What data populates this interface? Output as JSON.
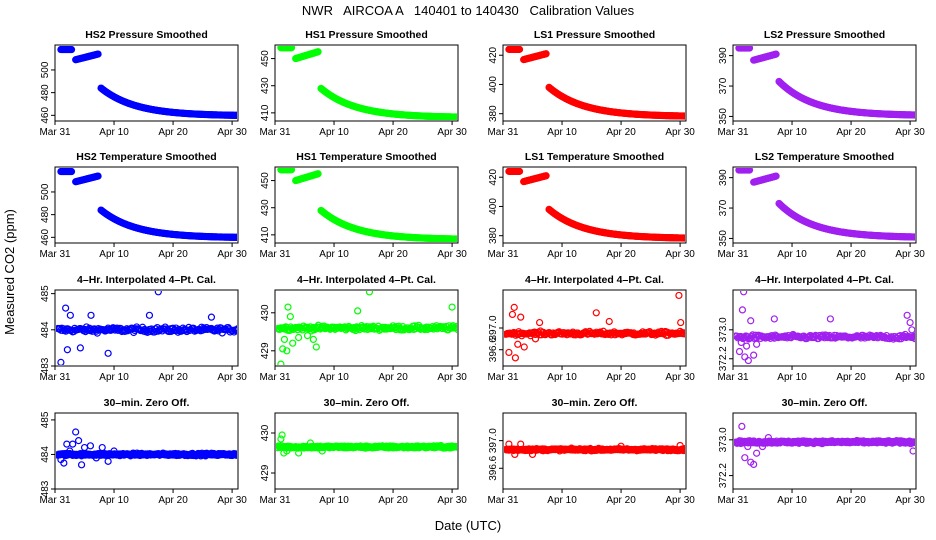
{
  "figure": {
    "title": "NWR   AIRCOA A   140401 to 140430   Calibration Values",
    "ylabel": "Measured CO2 (ppm)",
    "xlabel": "Date (UTC)",
    "x_tick_labels": [
      "Mar 31",
      "Apr 10",
      "Apr 20",
      "Apr 30"
    ],
    "series_colors": {
      "HS2": "#0000ff",
      "HS1": "#00ff00",
      "LS1": "#ff0000",
      "LS2": "#a020f0"
    }
  },
  "chart_data": [
    {
      "type": "scatter",
      "panel": "HS2 Pressure Smoothed",
      "title": "HS2 Pressure Smoothed",
      "series": "HS2",
      "color": "#0000ff",
      "xlim": [
        0,
        31
      ],
      "ylim": [
        455,
        522
      ],
      "yticks": [
        460,
        480,
        500
      ],
      "kind": "smooth",
      "segments": [
        {
          "x0": 1.0,
          "x1": 2.8,
          "y0": 518,
          "y1": 518
        },
        {
          "x0": 3.5,
          "x1": 7.3,
          "y0": 509,
          "y1": 514
        }
      ],
      "decay": {
        "x0": 7.8,
        "x1": 31.0,
        "y0": 484,
        "y_inf": 459.5,
        "k": 0.17
      }
    },
    {
      "type": "scatter",
      "panel": "HS1 Pressure Smoothed",
      "title": "HS1 Pressure Smoothed",
      "series": "HS1",
      "color": "#00ff00",
      "xlim": [
        0,
        31
      ],
      "ylim": [
        404,
        460
      ],
      "yticks": [
        410,
        430,
        450
      ],
      "kind": "smooth",
      "segments": [
        {
          "x0": 1.0,
          "x1": 2.8,
          "y0": 458,
          "y1": 458
        },
        {
          "x0": 3.5,
          "x1": 7.3,
          "y0": 450,
          "y1": 455
        }
      ],
      "decay": {
        "x0": 7.8,
        "x1": 31.0,
        "y0": 428,
        "y_inf": 406.5,
        "k": 0.17
      }
    },
    {
      "type": "scatter",
      "panel": "LS1 Pressure Smoothed",
      "title": "LS1 Pressure Smoothed",
      "series": "LS1",
      "color": "#ff0000",
      "xlim": [
        0,
        31
      ],
      "ylim": [
        375,
        427
      ],
      "yticks": [
        380,
        400,
        420
      ],
      "kind": "smooth",
      "segments": [
        {
          "x0": 1.0,
          "x1": 2.8,
          "y0": 424,
          "y1": 424
        },
        {
          "x0": 3.5,
          "x1": 7.3,
          "y0": 417,
          "y1": 421
        }
      ],
      "decay": {
        "x0": 7.8,
        "x1": 31.0,
        "y0": 398,
        "y_inf": 378,
        "k": 0.17
      }
    },
    {
      "type": "scatter",
      "panel": "LS2 Pressure Smoothed",
      "title": "LS2 Pressure Smoothed",
      "series": "LS2",
      "color": "#a020f0",
      "xlim": [
        0,
        31
      ],
      "ylim": [
        347,
        397
      ],
      "yticks": [
        350,
        370,
        390
      ],
      "kind": "smooth",
      "segments": [
        {
          "x0": 1.0,
          "x1": 2.8,
          "y0": 395,
          "y1": 395
        },
        {
          "x0": 3.5,
          "x1": 7.3,
          "y0": 387,
          "y1": 391
        }
      ],
      "decay": {
        "x0": 7.8,
        "x1": 31.0,
        "y0": 373,
        "y_inf": 350.5,
        "k": 0.17
      }
    },
    {
      "type": "scatter",
      "panel": "HS2 Temperature Smoothed",
      "title": "HS2 Temperature Smoothed",
      "series": "HS2",
      "color": "#0000ff",
      "xlim": [
        0,
        31
      ],
      "ylim": [
        455,
        522
      ],
      "yticks": [
        460,
        480,
        500
      ],
      "kind": "smooth",
      "segments": [
        {
          "x0": 1.0,
          "x1": 2.8,
          "y0": 518,
          "y1": 518
        },
        {
          "x0": 3.5,
          "x1": 7.3,
          "y0": 509,
          "y1": 514
        }
      ],
      "decay": {
        "x0": 7.8,
        "x1": 31.0,
        "y0": 484,
        "y_inf": 459.5,
        "k": 0.17
      }
    },
    {
      "type": "scatter",
      "panel": "HS1 Temperature Smoothed",
      "title": "HS1 Temperature Smoothed",
      "series": "HS1",
      "color": "#00ff00",
      "xlim": [
        0,
        31
      ],
      "ylim": [
        404,
        460
      ],
      "yticks": [
        410,
        430,
        450
      ],
      "kind": "smooth",
      "segments": [
        {
          "x0": 1.0,
          "x1": 2.8,
          "y0": 458,
          "y1": 458
        },
        {
          "x0": 3.5,
          "x1": 7.3,
          "y0": 450,
          "y1": 455
        }
      ],
      "decay": {
        "x0": 7.8,
        "x1": 31.0,
        "y0": 428,
        "y_inf": 406.5,
        "k": 0.17
      }
    },
    {
      "type": "scatter",
      "panel": "LS1 Temperature Smoothed",
      "title": "LS1 Temperature Smoothed",
      "series": "LS1",
      "color": "#ff0000",
      "xlim": [
        0,
        31
      ],
      "ylim": [
        375,
        427
      ],
      "yticks": [
        380,
        400,
        420
      ],
      "kind": "smooth",
      "segments": [
        {
          "x0": 1.0,
          "x1": 2.8,
          "y0": 424,
          "y1": 424
        },
        {
          "x0": 3.5,
          "x1": 7.3,
          "y0": 417,
          "y1": 421
        }
      ],
      "decay": {
        "x0": 7.8,
        "x1": 31.0,
        "y0": 398,
        "y_inf": 378,
        "k": 0.17
      }
    },
    {
      "type": "scatter",
      "panel": "LS2 Temperature Smoothed",
      "title": "LS2 Temperature Smoothed",
      "series": "LS2",
      "color": "#a020f0",
      "xlim": [
        0,
        31
      ],
      "ylim": [
        347,
        397
      ],
      "yticks": [
        350,
        370,
        390
      ],
      "kind": "smooth",
      "segments": [
        {
          "x0": 1.0,
          "x1": 2.8,
          "y0": 395,
          "y1": 395
        },
        {
          "x0": 3.5,
          "x1": 7.3,
          "y0": 387,
          "y1": 391
        }
      ],
      "decay": {
        "x0": 7.8,
        "x1": 31.0,
        "y0": 373,
        "y_inf": 350.5,
        "k": 0.17
      }
    },
    {
      "type": "scatter",
      "panel": "HS2 4-Hr. Interpolated 4-Pt. Cal.",
      "title": "4–Hr. Interpolated 4–Pt. Cal.",
      "series": "HS2",
      "color": "#0000ff",
      "xlim": [
        0,
        31
      ],
      "ylim": [
        483.0,
        485.1
      ],
      "yticks": [
        483.0,
        484.0,
        485.0
      ],
      "kind": "noise",
      "center": 484.0,
      "spread": 0.12,
      "points_per_day": 6,
      "x_start": 0.5,
      "x_end": 31.0,
      "outliers": [
        [
          1.0,
          483.1
        ],
        [
          1.8,
          484.6
        ],
        [
          2.1,
          483.45
        ],
        [
          2.6,
          484.4
        ],
        [
          4.3,
          483.5
        ],
        [
          6.1,
          484.4
        ],
        [
          9.0,
          483.35
        ],
        [
          16.0,
          484.4
        ],
        [
          17.5,
          485.05
        ],
        [
          26.5,
          484.35
        ]
      ]
    },
    {
      "type": "scatter",
      "panel": "HS1 4-Hr. Interpolated 4-Pt. Cal.",
      "title": "4–Hr. Interpolated 4–Pt. Cal.",
      "series": "HS1",
      "color": "#00ff00",
      "xlim": [
        0,
        31
      ],
      "ylim": [
        428.6,
        430.6
      ],
      "yticks": [
        429.0,
        430.0
      ],
      "kind": "noise",
      "center": 429.6,
      "spread": 0.1,
      "points_per_day": 6,
      "x_start": 0.5,
      "x_end": 31.0,
      "outliers": [
        [
          1.0,
          428.65
        ],
        [
          1.3,
          429.05
        ],
        [
          1.6,
          429.3
        ],
        [
          2.0,
          429.0
        ],
        [
          2.2,
          430.15
        ],
        [
          2.6,
          429.9
        ],
        [
          3.0,
          429.2
        ],
        [
          4.0,
          429.35
        ],
        [
          5.5,
          429.4
        ],
        [
          6.5,
          429.3
        ],
        [
          7.0,
          429.1
        ],
        [
          14.0,
          430.05
        ],
        [
          16.0,
          430.55
        ],
        [
          30.0,
          430.15
        ]
      ]
    },
    {
      "type": "scatter",
      "panel": "LS1 4-Hr. Interpolated 4-Pt. Cal.",
      "title": "4–Hr. Interpolated 4–Pt. Cal.",
      "series": "LS1",
      "color": "#ff0000",
      "xlim": [
        0,
        31
      ],
      "ylim": [
        396.3,
        397.7
      ],
      "yticks": [
        396.6,
        397.0
      ],
      "kind": "noise",
      "center": 396.9,
      "spread": 0.06,
      "points_per_day": 6,
      "x_start": 0.5,
      "x_end": 31.0,
      "outliers": [
        [
          1.0,
          396.55
        ],
        [
          1.6,
          397.25
        ],
        [
          1.9,
          397.38
        ],
        [
          2.1,
          396.45
        ],
        [
          2.5,
          396.7
        ],
        [
          3.0,
          397.2
        ],
        [
          3.6,
          396.65
        ],
        [
          5.5,
          396.8
        ],
        [
          6.2,
          397.1
        ],
        [
          15.8,
          397.28
        ],
        [
          18.0,
          397.12
        ],
        [
          29.8,
          397.6
        ],
        [
          30.1,
          397.1
        ]
      ]
    },
    {
      "type": "scatter",
      "panel": "LS2 4-Hr. Interpolated 4-Pt. Cal.",
      "title": "4–Hr. Interpolated 4–Pt. Cal.",
      "series": "LS2",
      "color": "#a020f0",
      "xlim": [
        0,
        31
      ],
      "ylim": [
        372.0,
        374.1
      ],
      "yticks": [
        372.2,
        373.0
      ],
      "kind": "noise",
      "center": 372.8,
      "spread": 0.1,
      "points_per_day": 6,
      "x_start": 0.5,
      "x_end": 31.0,
      "outliers": [
        [
          1.1,
          372.4
        ],
        [
          1.4,
          372.65
        ],
        [
          1.6,
          373.55
        ],
        [
          1.8,
          374.05
        ],
        [
          2.0,
          372.25
        ],
        [
          2.3,
          372.55
        ],
        [
          2.6,
          372.15
        ],
        [
          3.0,
          373.25
        ],
        [
          3.5,
          372.3
        ],
        [
          4.0,
          372.6
        ],
        [
          7.0,
          373.3
        ],
        [
          16.5,
          373.3
        ],
        [
          29.5,
          373.4
        ],
        [
          30.0,
          373.2
        ],
        [
          30.3,
          373.0
        ]
      ]
    },
    {
      "type": "scatter",
      "panel": "HS2 30-min. Zero Off.",
      "title": "30–min. Zero Off.",
      "series": "HS2",
      "color": "#0000ff",
      "xlim": [
        0,
        31
      ],
      "ylim": [
        483.0,
        485.2
      ],
      "yticks": [
        483.0,
        484.0,
        485.0
      ],
      "kind": "noise",
      "center": 484.0,
      "spread": 0.06,
      "points_per_day": 10,
      "x_start": 0.5,
      "x_end": 31.0,
      "outliers": [
        [
          1.0,
          483.85
        ],
        [
          1.5,
          483.75
        ],
        [
          2.0,
          484.3
        ],
        [
          2.5,
          484.1
        ],
        [
          3.0,
          484.3
        ],
        [
          3.5,
          484.65
        ],
        [
          4.0,
          484.4
        ],
        [
          4.5,
          483.7
        ],
        [
          5.0,
          484.2
        ],
        [
          6.0,
          484.25
        ],
        [
          7.0,
          483.9
        ],
        [
          8.0,
          484.2
        ],
        [
          9.0,
          483.8
        ],
        [
          10.0,
          484.1
        ]
      ]
    },
    {
      "type": "scatter",
      "panel": "HS1 30-min. Zero Off.",
      "title": "30–min. Zero Off.",
      "series": "HS1",
      "color": "#00ff00",
      "xlim": [
        0,
        31
      ],
      "ylim": [
        428.6,
        430.5
      ],
      "yticks": [
        429.0,
        430.0
      ],
      "kind": "noise",
      "center": 429.65,
      "spread": 0.05,
      "points_per_day": 10,
      "x_start": 0.5,
      "x_end": 31.0,
      "outliers": [
        [
          1.0,
          429.85
        ],
        [
          1.2,
          429.95
        ],
        [
          1.5,
          429.5
        ],
        [
          2.0,
          429.55
        ],
        [
          4.0,
          429.5
        ],
        [
          6.0,
          429.75
        ],
        [
          8.0,
          429.55
        ]
      ]
    },
    {
      "type": "scatter",
      "panel": "LS1 30-min. Zero Off.",
      "title": "30–min. Zero Off.",
      "series": "LS1",
      "color": "#ff0000",
      "xlim": [
        0,
        31
      ],
      "ylim": [
        396.3,
        397.4
      ],
      "yticks": [
        396.6,
        397.0
      ],
      "kind": "noise",
      "center": 396.87,
      "spread": 0.025,
      "points_per_day": 10,
      "x_start": 0.5,
      "x_end": 31.0,
      "outliers": [
        [
          1.0,
          396.95
        ],
        [
          2.0,
          396.8
        ],
        [
          3.0,
          396.95
        ],
        [
          5.0,
          396.8
        ],
        [
          20.0,
          396.92
        ],
        [
          30.0,
          396.93
        ]
      ]
    },
    {
      "type": "scatter",
      "panel": "LS2 30-min. Zero Off.",
      "title": "30–min. Zero Off.",
      "series": "LS2",
      "color": "#a020f0",
      "xlim": [
        0,
        31
      ],
      "ylim": [
        371.9,
        373.6
      ],
      "yticks": [
        372.2,
        373.0
      ],
      "kind": "noise",
      "center": 372.95,
      "spread": 0.05,
      "points_per_day": 10,
      "x_start": 0.5,
      "x_end": 31.0,
      "outliers": [
        [
          1.5,
          373.3
        ],
        [
          2.0,
          372.6
        ],
        [
          2.5,
          372.85
        ],
        [
          3.0,
          372.5
        ],
        [
          3.5,
          372.45
        ],
        [
          4.0,
          372.7
        ],
        [
          5.0,
          372.85
        ],
        [
          6.0,
          373.05
        ],
        [
          30.5,
          372.75
        ]
      ]
    }
  ]
}
